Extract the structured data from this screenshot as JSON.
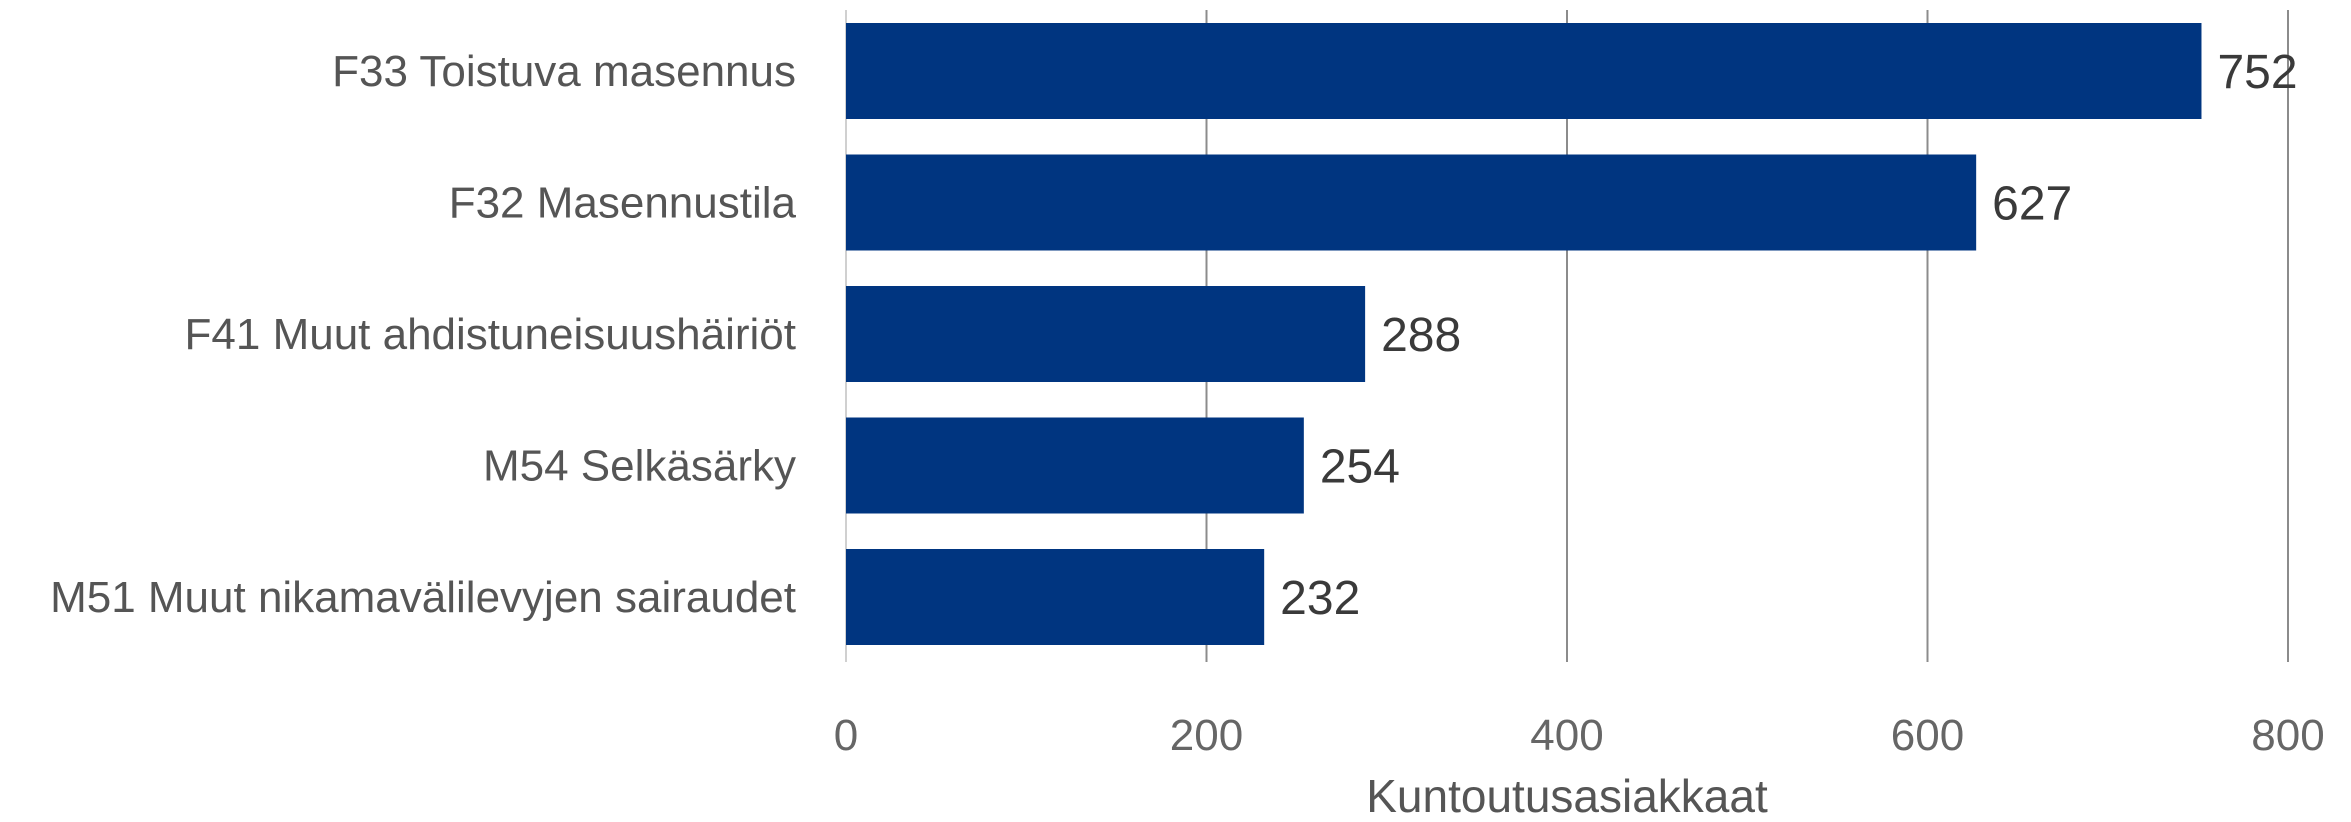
{
  "chart_data": {
    "type": "bar",
    "orientation": "horizontal",
    "categories": [
      "F33 Toistuva masennus",
      "F32 Masennustila",
      "F41 Muut ahdistuneisuushäiriöt",
      "M54 Selkäsärky",
      "M51 Muut nikamavälilevyjen sairaudet"
    ],
    "values": [
      752,
      627,
      288,
      254,
      232
    ],
    "data_labels": [
      "752",
      "627",
      "288",
      "254",
      "232"
    ],
    "xlim": [
      0,
      800
    ],
    "xticks": [
      0,
      200,
      400,
      600,
      800
    ],
    "xtick_labels": [
      "0",
      "200",
      "400",
      "600",
      "800"
    ],
    "xlabel": "Kuntoutusasiakkaat",
    "grid": true,
    "legend": "none",
    "colors": {
      "bar": "#003580",
      "grid": "#8c8c8c",
      "baseline": "#d0d0d0"
    }
  }
}
